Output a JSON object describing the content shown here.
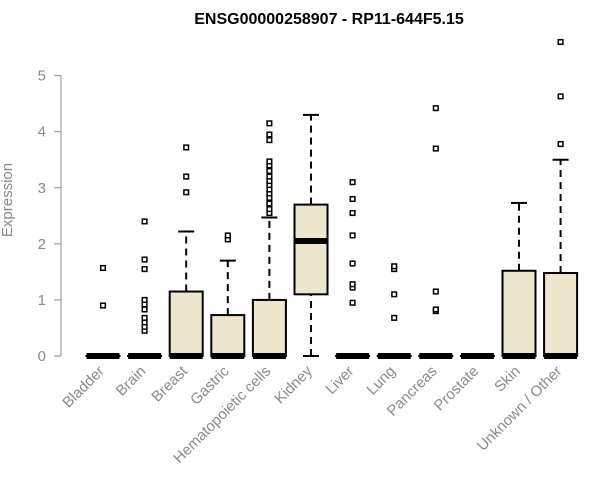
{
  "chart_data": {
    "type": "boxplot",
    "title": "ENSG00000258907 - RP11-644F5.15",
    "ylabel": "Expression",
    "xlabel": "",
    "ylim": [
      0,
      5.6
    ],
    "yticks": [
      0,
      1,
      2,
      3,
      4,
      5
    ],
    "box_fill": "#ede6cc",
    "grid": false,
    "categories": [
      "Bladder",
      "Brain",
      "Breast",
      "Gastric",
      "Hematopoietic cells",
      "Kidney",
      "Liver",
      "Lung",
      "Pancreas",
      "Prostate",
      "Skin",
      "Unknown / Other"
    ],
    "boxes": [
      {
        "category": "Bladder",
        "min": 0,
        "q1": 0,
        "median": 0,
        "q3": 0,
        "max": 0,
        "outliers": [
          0.9,
          1.57
        ]
      },
      {
        "category": "Brain",
        "min": 0,
        "q1": 0,
        "median": 0,
        "q3": 0,
        "max": 0,
        "outliers": [
          0.45,
          0.52,
          0.6,
          0.68,
          0.83,
          0.92,
          1.0,
          1.55,
          1.72,
          2.4
        ]
      },
      {
        "category": "Breast",
        "min": 0,
        "q1": 0,
        "median": 0,
        "q3": 1.15,
        "max": 2.22,
        "outliers": [
          2.92,
          3.2,
          3.72
        ]
      },
      {
        "category": "Gastric",
        "min": 0,
        "q1": 0,
        "median": 0,
        "q3": 0.73,
        "max": 1.7,
        "outliers": [
          2.08,
          2.15
        ]
      },
      {
        "category": "Hematopoietic cells",
        "min": 0,
        "q1": 0,
        "median": 0,
        "q3": 1.0,
        "max": 2.47,
        "outliers": [
          2.55,
          2.62,
          2.72,
          2.82,
          2.9,
          2.97,
          3.05,
          3.12,
          3.2,
          3.3,
          3.4,
          3.47,
          3.85,
          3.95,
          4.15
        ]
      },
      {
        "category": "Kidney",
        "min": 0,
        "q1": 1.1,
        "median": 2.05,
        "q3": 2.7,
        "max": 4.3,
        "outliers": []
      },
      {
        "category": "Liver",
        "min": 0,
        "q1": 0,
        "median": 0,
        "q3": 0,
        "max": 0,
        "outliers": [
          0.95,
          1.22,
          1.28,
          1.65,
          2.15,
          2.55,
          2.8,
          3.1
        ]
      },
      {
        "category": "Lung",
        "min": 0,
        "q1": 0,
        "median": 0,
        "q3": 0,
        "max": 0,
        "outliers": [
          0.68,
          1.1,
          1.55,
          1.6
        ]
      },
      {
        "category": "Pancreas",
        "min": 0,
        "q1": 0,
        "median": 0,
        "q3": 0,
        "max": 0,
        "outliers": [
          0.8,
          0.83,
          1.15,
          3.7,
          4.42
        ]
      },
      {
        "category": "Prostate",
        "min": 0,
        "q1": 0,
        "median": 0,
        "q3": 0,
        "max": 0,
        "outliers": []
      },
      {
        "category": "Skin",
        "min": 0,
        "q1": 0,
        "median": 0,
        "q3": 1.52,
        "max": 2.73,
        "outliers": []
      },
      {
        "category": "Unknown / Other",
        "min": 0,
        "q1": 0,
        "median": 0,
        "q3": 1.48,
        "max": 3.5,
        "outliers": [
          3.78,
          4.63,
          5.6
        ]
      }
    ]
  }
}
